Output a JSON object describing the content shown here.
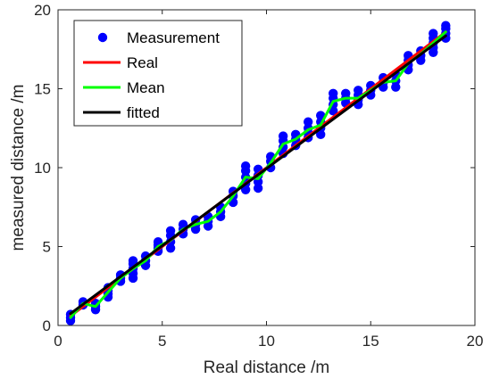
{
  "chart_data": {
    "type": "line",
    "xlabel": "Real distance /m",
    "ylabel": "measured distance /m",
    "xlim": [
      0,
      20
    ],
    "ylim": [
      0,
      20
    ],
    "xticks": [
      0,
      5,
      10,
      15,
      20
    ],
    "yticks": [
      0,
      5,
      10,
      15,
      20
    ],
    "xtick_labels": [
      "0",
      "5",
      "10",
      "15",
      "20"
    ],
    "ytick_labels": [
      "0",
      "5",
      "10",
      "15",
      "20"
    ],
    "grid": false,
    "legend_position": "top-left",
    "series": [
      {
        "name": "Measurement",
        "kind": "scatter",
        "color": "#0000ff",
        "points": [
          [
            0.6,
            0.3
          ],
          [
            0.6,
            0.5
          ],
          [
            0.6,
            0.7
          ],
          [
            1.2,
            1.3
          ],
          [
            1.2,
            1.5
          ],
          [
            1.8,
            1.0
          ],
          [
            1.8,
            1.2
          ],
          [
            1.8,
            1.4
          ],
          [
            2.4,
            1.8
          ],
          [
            2.4,
            2.0
          ],
          [
            2.4,
            2.2
          ],
          [
            2.4,
            2.4
          ],
          [
            3.0,
            2.8
          ],
          [
            3.0,
            3.0
          ],
          [
            3.0,
            3.2
          ],
          [
            3.6,
            3.0
          ],
          [
            3.6,
            3.3
          ],
          [
            3.6,
            3.6
          ],
          [
            3.6,
            3.9
          ],
          [
            3.6,
            4.1
          ],
          [
            4.2,
            3.8
          ],
          [
            4.2,
            4.1
          ],
          [
            4.2,
            4.4
          ],
          [
            4.8,
            4.7
          ],
          [
            4.8,
            4.9
          ],
          [
            4.8,
            5.1
          ],
          [
            4.8,
            5.3
          ],
          [
            5.4,
            4.9
          ],
          [
            5.4,
            5.3
          ],
          [
            5.4,
            5.7
          ],
          [
            5.4,
            6.0
          ],
          [
            6.0,
            5.8
          ],
          [
            6.0,
            6.1
          ],
          [
            6.0,
            6.4
          ],
          [
            6.6,
            6.1
          ],
          [
            6.6,
            6.4
          ],
          [
            6.6,
            6.7
          ],
          [
            7.2,
            6.3
          ],
          [
            7.2,
            6.6
          ],
          [
            7.2,
            6.9
          ],
          [
            7.8,
            6.9
          ],
          [
            7.8,
            7.2
          ],
          [
            7.8,
            7.5
          ],
          [
            8.4,
            7.8
          ],
          [
            8.4,
            8.2
          ],
          [
            8.4,
            8.5
          ],
          [
            9.0,
            8.6
          ],
          [
            9.0,
            9.0
          ],
          [
            9.0,
            9.4
          ],
          [
            9.0,
            9.8
          ],
          [
            9.0,
            10.1
          ],
          [
            9.6,
            8.7
          ],
          [
            9.6,
            9.1
          ],
          [
            9.6,
            9.5
          ],
          [
            9.6,
            9.9
          ],
          [
            10.2,
            10.0
          ],
          [
            10.2,
            10.4
          ],
          [
            10.2,
            10.7
          ],
          [
            10.8,
            10.9
          ],
          [
            10.8,
            11.3
          ],
          [
            10.8,
            11.7
          ],
          [
            10.8,
            12.0
          ],
          [
            11.4,
            11.4
          ],
          [
            11.4,
            11.8
          ],
          [
            11.4,
            12.1
          ],
          [
            12.0,
            11.9
          ],
          [
            12.0,
            12.2
          ],
          [
            12.0,
            12.5
          ],
          [
            12.0,
            12.9
          ],
          [
            12.6,
            12.1
          ],
          [
            12.6,
            12.5
          ],
          [
            12.6,
            12.9
          ],
          [
            12.6,
            13.3
          ],
          [
            13.2,
            13.6
          ],
          [
            13.2,
            14.0
          ],
          [
            13.2,
            14.4
          ],
          [
            13.2,
            14.7
          ],
          [
            13.8,
            14.1
          ],
          [
            13.8,
            14.4
          ],
          [
            13.8,
            14.7
          ],
          [
            14.4,
            14.0
          ],
          [
            14.4,
            14.3
          ],
          [
            14.4,
            14.6
          ],
          [
            14.4,
            14.9
          ],
          [
            15.0,
            14.6
          ],
          [
            15.0,
            14.9
          ],
          [
            15.0,
            15.2
          ],
          [
            15.6,
            15.1
          ],
          [
            15.6,
            15.4
          ],
          [
            15.6,
            15.7
          ],
          [
            16.2,
            15.1
          ],
          [
            16.2,
            15.5
          ],
          [
            16.2,
            15.9
          ],
          [
            16.8,
            16.2
          ],
          [
            16.8,
            16.5
          ],
          [
            16.8,
            16.8
          ],
          [
            16.8,
            17.1
          ],
          [
            17.4,
            16.8
          ],
          [
            17.4,
            17.1
          ],
          [
            17.4,
            17.4
          ],
          [
            18.0,
            17.3
          ],
          [
            18.0,
            17.6
          ],
          [
            18.0,
            17.9
          ],
          [
            18.0,
            18.2
          ],
          [
            18.0,
            18.5
          ],
          [
            18.6,
            18.2
          ],
          [
            18.6,
            18.5
          ],
          [
            18.6,
            18.8
          ],
          [
            18.6,
            19.0
          ]
        ]
      },
      {
        "name": "Real",
        "kind": "line",
        "color": "#ff0000",
        "points": [
          [
            0.6,
            0.6
          ],
          [
            18.6,
            18.6
          ]
        ]
      },
      {
        "name": "Mean",
        "kind": "line",
        "color": "#00ff00",
        "points": [
          [
            0.6,
            0.5
          ],
          [
            1.2,
            1.4
          ],
          [
            1.8,
            1.2
          ],
          [
            2.4,
            2.1
          ],
          [
            3.0,
            3.0
          ],
          [
            3.6,
            3.6
          ],
          [
            4.2,
            4.1
          ],
          [
            4.8,
            5.0
          ],
          [
            5.4,
            5.4
          ],
          [
            6.0,
            6.1
          ],
          [
            6.6,
            6.4
          ],
          [
            7.2,
            6.6
          ],
          [
            7.8,
            7.2
          ],
          [
            8.4,
            8.2
          ],
          [
            9.0,
            9.4
          ],
          [
            9.6,
            9.3
          ],
          [
            10.2,
            10.3
          ],
          [
            10.8,
            11.5
          ],
          [
            11.4,
            11.8
          ],
          [
            12.0,
            12.4
          ],
          [
            12.6,
            12.7
          ],
          [
            13.2,
            14.2
          ],
          [
            13.8,
            14.4
          ],
          [
            14.4,
            14.4
          ],
          [
            15.0,
            14.9
          ],
          [
            15.6,
            15.4
          ],
          [
            16.2,
            15.5
          ],
          [
            16.8,
            16.6
          ],
          [
            17.4,
            17.2
          ],
          [
            18.0,
            17.9
          ],
          [
            18.6,
            18.6
          ]
        ]
      },
      {
        "name": "fitted",
        "kind": "line",
        "color": "#000000",
        "points": [
          [
            0.6,
            0.75
          ],
          [
            18.6,
            18.35
          ]
        ]
      }
    ]
  }
}
